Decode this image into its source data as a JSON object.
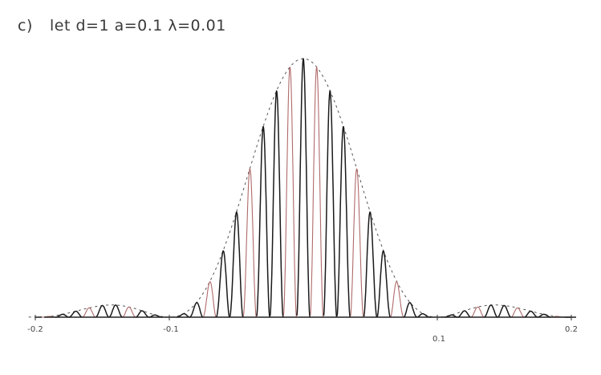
{
  "heading": {
    "part": "c)",
    "text": "let d=1   a=0.1   λ=0.01"
  },
  "x_ticks": [
    {
      "value": -0.2,
      "label": "-0.2"
    },
    {
      "value": -0.1,
      "label": "-0.1"
    },
    {
      "value": 0.1,
      "label": "0.1"
    },
    {
      "value": 0.2,
      "label": "0.2"
    }
  ],
  "parameters": {
    "d": 1,
    "a": 0.1,
    "lambda": 0.01
  },
  "colors": {
    "ink": "#1a1a1a",
    "pencil_red": "#b06a6a",
    "envelope": "#555555"
  }
}
